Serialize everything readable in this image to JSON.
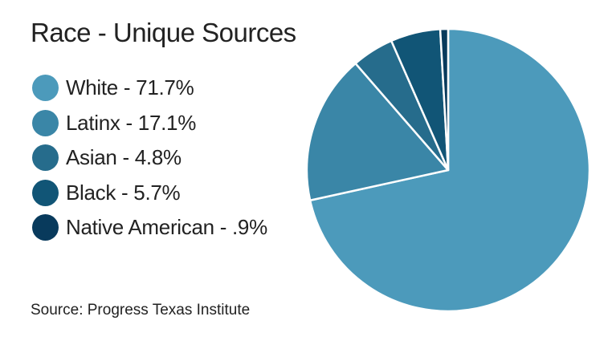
{
  "chart_data": {
    "type": "pie",
    "title": "Race - Unique Sources",
    "slices": [
      {
        "label": "White - 71.7%",
        "value": 71.7,
        "color": "#4c9abb"
      },
      {
        "label": "Latinx - 17.1%",
        "value": 17.1,
        "color": "#3a86a7"
      },
      {
        "label": "Asian - 4.8%",
        "value": 4.8,
        "color": "#266c8c"
      },
      {
        "label": "Black - 5.7%",
        "value": 5.7,
        "color": "#115576"
      },
      {
        "label": "Native American - .9%",
        "value": 0.9,
        "color": "#083a5c"
      }
    ],
    "legend_position": "left",
    "source": "Source: Progress Texas Institute"
  }
}
